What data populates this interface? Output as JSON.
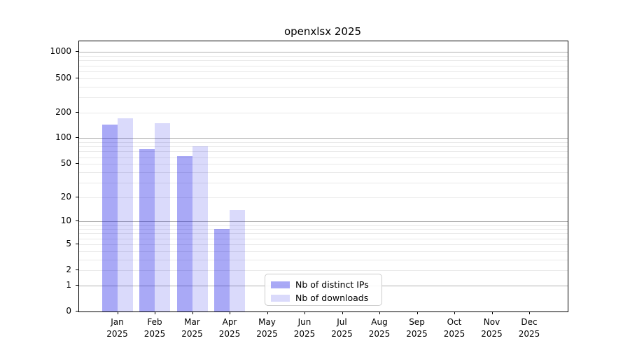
{
  "title": "openxlsx 2025",
  "colors": {
    "ips_fill": "#0A0AE659",
    "downloads_fill": "#0A0AE626",
    "major_grid": "#b0b0b0",
    "minor_grid": "#e9e9e9",
    "axis_spine": "#000000",
    "legend_border": "#cccccc",
    "text": "#000000"
  },
  "legend": {
    "entries": [
      "Nb of distinct IPs",
      "Nb of downloads"
    ]
  },
  "chart_data": {
    "type": "bar",
    "title": "openxlsx 2025",
    "xlabel": "",
    "ylabel": "",
    "categories": [
      "Jan 2025",
      "Feb 2025",
      "Mar 2025",
      "Apr 2025",
      "May 2025",
      "Jun 2025",
      "Jul 2025",
      "Aug 2025",
      "Sep 2025",
      "Oct 2025",
      "Nov 2025",
      "Dec 2025"
    ],
    "series": [
      {
        "name": "Nb of distinct IPs",
        "values": [
          145,
          75,
          62,
          8,
          null,
          null,
          null,
          null,
          null,
          null,
          null,
          null
        ]
      },
      {
        "name": "Nb of downloads",
        "values": [
          170,
          150,
          80,
          14,
          null,
          null,
          null,
          null,
          null,
          null,
          null,
          null
        ]
      }
    ],
    "y_scale": "log10(1+x)",
    "y_ticks": [
      0,
      1,
      2,
      5,
      10,
      20,
      50,
      100,
      200,
      500,
      1000
    ],
    "y_minor_gridlines": [
      2,
      3,
      4,
      5,
      6,
      7,
      8,
      9,
      20,
      30,
      40,
      50,
      60,
      70,
      80,
      90,
      200,
      300,
      400,
      500,
      600,
      700,
      800,
      900
    ],
    "y_major_gridlines": [
      1,
      10,
      100,
      1000
    ],
    "ylim": [
      0,
      1335
    ],
    "grid": "both-horizontal",
    "legend_position": "lower-center"
  }
}
